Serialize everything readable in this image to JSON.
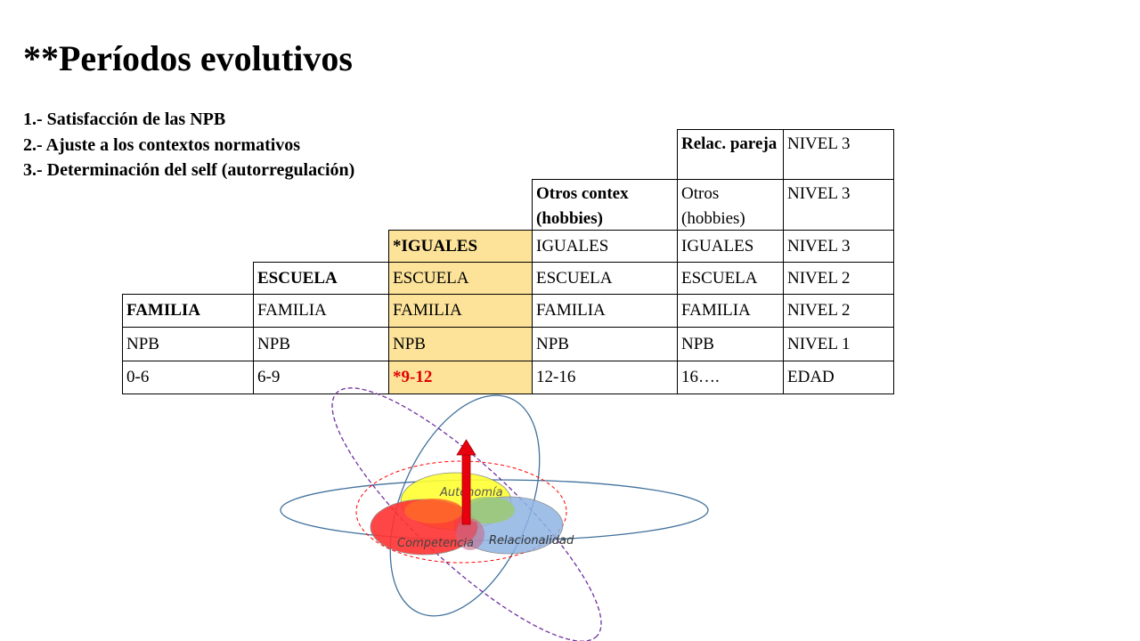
{
  "title": "**Períodos evolutivos",
  "goals": [
    "1.- Satisfacción de las NPB",
    "2.- Ajuste a los contextos normativos",
    "3.- Determinación del self (autorregulación)"
  ],
  "table": {
    "row_pareja": {
      "c5": "Relac. pareja",
      "c6": "NIVEL 3"
    },
    "row_otros": {
      "c4": "Otros contex (hobbies)",
      "c5": "Otros (hobbies)",
      "c6": "NIVEL 3"
    },
    "row_iguales": {
      "c3": "*IGUALES",
      "c4": "IGUALES",
      "c5": "IGUALES",
      "c6": "NIVEL 3"
    },
    "row_escuela": {
      "c2": "ESCUELA",
      "c3": "ESCUELA",
      "c4": "ESCUELA",
      "c5": "ESCUELA",
      "c6": "NIVEL 2"
    },
    "row_familia": {
      "c1": "FAMILIA",
      "c2": "FAMILIA",
      "c3": "FAMILIA",
      "c4": "FAMILIA",
      "c5": "FAMILIA",
      "c6": "NIVEL 2"
    },
    "row_npb": {
      "c1": "NPB",
      "c2": "NPB",
      "c3": "NPB",
      "c4": "NPB",
      "c5": "NPB",
      "c6": "NIVEL 1"
    },
    "row_edad": {
      "c1": "0-6",
      "c2": "6-9",
      "c3": "*9-12",
      "c4": "12-16",
      "c5": "16….",
      "c6": "EDAD"
    }
  },
  "diagram": {
    "labels": {
      "autonomia": "Autonomía",
      "competencia": "Competencia",
      "relacionalidad": "Relacionalidad"
    },
    "colors": {
      "yellow": "#ffff33",
      "red": "#ff3333",
      "blue": "#8fb4e3",
      "green": "#9cc97a",
      "arrow": "#e8000f",
      "orbit": "#41719c",
      "purple": "#7030a0",
      "red_dashed": "#ff0000"
    }
  },
  "highlight_color": "#fde39a",
  "accent_red": "#e00000"
}
